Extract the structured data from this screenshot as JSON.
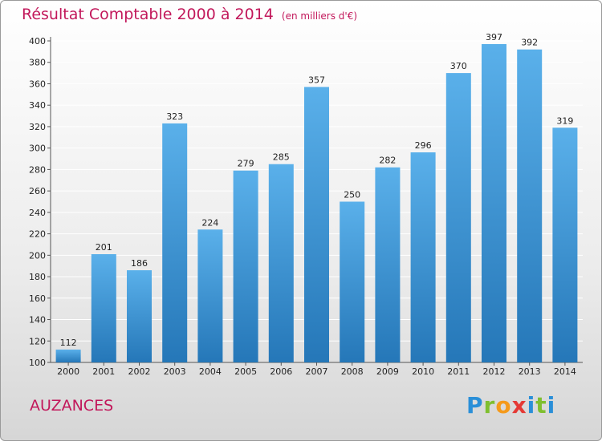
{
  "header": {
    "title": "Résultat Comptable 2000 à 2014",
    "subtitle": "(en milliers d'€)"
  },
  "footer": {
    "city": "AUZANCES",
    "logo_text": "Proxiti"
  },
  "colors": {
    "accent": "#c2185b",
    "bar_top": "#5ab0ea",
    "bar_bottom": "#2577b8",
    "grid": "#ffffff"
  },
  "chart_data": {
    "type": "bar",
    "title": "Résultat Comptable 2000 à 2014",
    "subtitle": "(en milliers d'€)",
    "categories": [
      "2000",
      "2001",
      "2002",
      "2003",
      "2004",
      "2005",
      "2006",
      "2007",
      "2008",
      "2009",
      "2010",
      "2011",
      "2012",
      "2013",
      "2014"
    ],
    "values": [
      112,
      201,
      186,
      323,
      224,
      279,
      285,
      357,
      250,
      282,
      296,
      370,
      397,
      392,
      319
    ],
    "ylim": [
      100,
      400
    ],
    "yticks": [
      100,
      120,
      140,
      160,
      180,
      200,
      220,
      240,
      260,
      280,
      300,
      320,
      340,
      360,
      380,
      400
    ],
    "grid": true,
    "xlabel": "",
    "ylabel": ""
  }
}
